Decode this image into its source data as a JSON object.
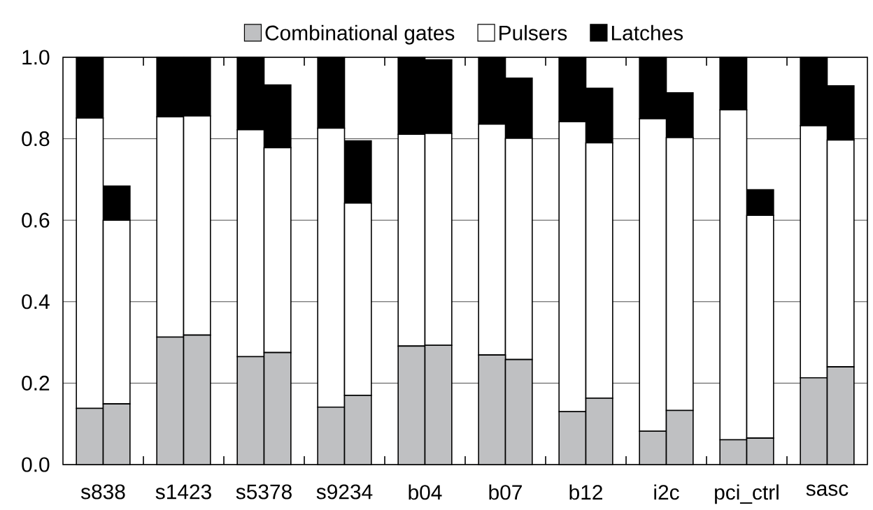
{
  "chart_data": {
    "type": "bar",
    "stacked": true,
    "categories": [
      "s838",
      null,
      null,
      "s1423",
      null,
      null,
      "s5378",
      null,
      null,
      "s9234",
      null,
      null,
      "b04",
      null,
      null,
      "b07",
      null,
      null,
      "b12",
      null,
      null,
      "i2c",
      null,
      null,
      "pci_ctrl",
      null,
      null,
      "sasc",
      null,
      null
    ],
    "series": [
      {
        "name": "Combinational gates",
        "color": "#bfc0c2",
        "values": [
          0.138,
          0.149,
          null,
          0.313,
          0.318,
          null,
          0.265,
          0.275,
          null,
          0.141,
          0.17,
          null,
          0.291,
          0.293,
          null,
          0.269,
          0.258,
          null,
          0.13,
          0.163,
          null,
          0.082,
          0.133,
          null,
          0.061,
          0.065,
          null,
          0.213,
          0.24,
          null
        ]
      },
      {
        "name": "Pulsers",
        "color": "#ffffff",
        "values": [
          0.713,
          0.451,
          null,
          0.541,
          0.538,
          null,
          0.557,
          0.503,
          null,
          0.685,
          0.472,
          null,
          0.52,
          0.52,
          null,
          0.567,
          0.543,
          null,
          0.712,
          0.627,
          null,
          0.767,
          0.67,
          null,
          0.81,
          0.547,
          null,
          0.619,
          0.557,
          null
        ]
      },
      {
        "name": "Latches",
        "color": "#000000",
        "values": [
          0.149,
          0.084,
          null,
          0.146,
          0.144,
          null,
          0.178,
          0.154,
          null,
          0.174,
          0.153,
          null,
          0.189,
          0.181,
          null,
          0.164,
          0.148,
          null,
          0.158,
          0.134,
          null,
          0.151,
          0.11,
          null,
          0.129,
          0.063,
          null,
          0.168,
          0.133,
          null
        ]
      }
    ],
    "ylim": [
      0,
      1
    ],
    "yticks": [
      {
        "value": 0,
        "label": "0.0"
      },
      {
        "value": 0.2,
        "label": "0.2"
      },
      {
        "value": 0.4,
        "label": "0.4"
      },
      {
        "value": 0.6,
        "label": "0.6"
      },
      {
        "value": 0.8,
        "label": "0.8"
      },
      {
        "value": 1,
        "label": "1.0"
      }
    ],
    "grid": "y",
    "legend": "top"
  }
}
